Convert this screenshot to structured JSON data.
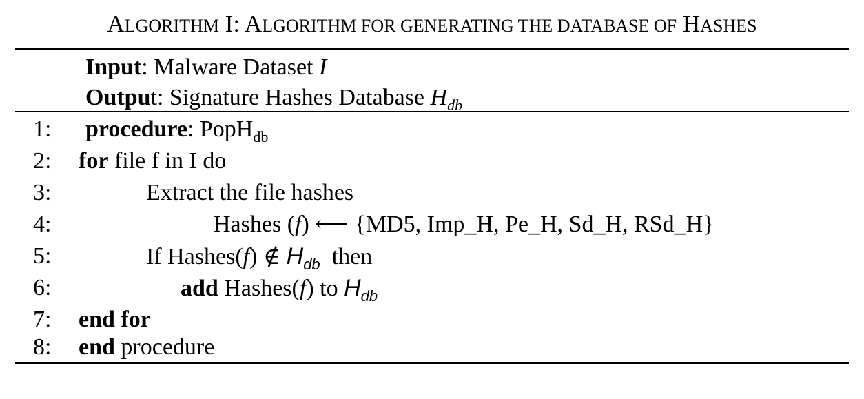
{
  "caption": {
    "p1_cap": "A",
    "p1_rest": "LGORITHM",
    "p2_cap": "I: A",
    "p2_rest": "LGORITHM FOR GENERATING THE DATABASE OF",
    "p3_cap": "H",
    "p3_rest": "ASHES"
  },
  "io": {
    "input_label": "Input",
    "input_text": ": Malware Dataset ",
    "input_var": "I",
    "output_label_bold": "Outpu",
    "output_label_rest": "t",
    "output_text": ": Signature Hashes Database ",
    "output_var": "H",
    "output_var_sub": "db"
  },
  "steps": [
    {
      "num": "1:",
      "kw": "procedure",
      "text": ": PopH",
      "sub": "db"
    },
    {
      "num": "2:",
      "kw": "for",
      "text": " file f in I do"
    },
    {
      "num": "3:",
      "text": "Extract the file hashes"
    },
    {
      "num": "4:",
      "pre": "Hashes (",
      "var": "f",
      "post": ") ⟵ {MD5, Imp_H, Pe_H, Sd_H, RSd_H}"
    },
    {
      "num": "5:",
      "pre": "If Hashes(",
      "var": "f",
      "mid": ") ∉ ",
      "hvar": "H",
      "hsub": "db",
      "post": "  then"
    },
    {
      "num": "6:",
      "kw": "add",
      "pre": " Hashes(",
      "var": "f",
      "mid": ") to ",
      "hvar": "H",
      "hsub": "db"
    },
    {
      "num": "7:",
      "kw": "end for"
    },
    {
      "num": "8:",
      "kw": "end",
      "text": " procedure"
    }
  ]
}
